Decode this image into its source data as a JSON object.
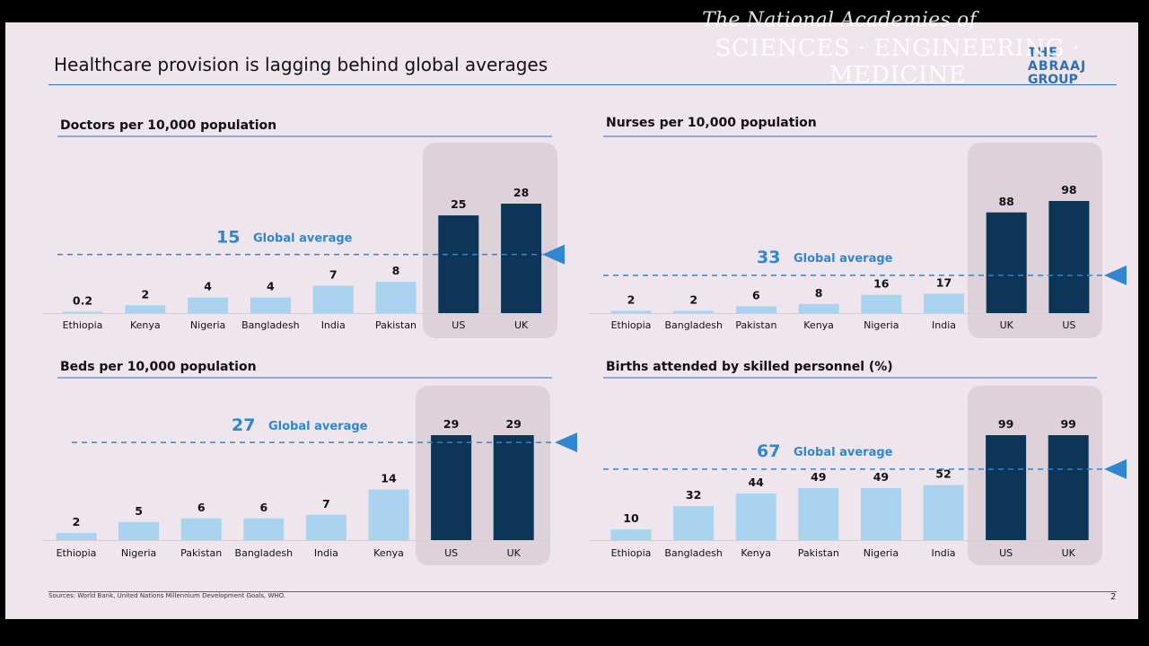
{
  "page": {
    "title": "Healthcare provision is lagging behind global averages",
    "source": "Sources: World Bank, United Nations Millennium Development Goals, WHO.",
    "page_number": "2",
    "watermark_line1": "The National Academies of",
    "watermark_line2": "SCIENCES · ENGINEERING · MEDICINE",
    "logo_line1": "THE",
    "logo_line2": "ABRAAJ",
    "logo_line3": "GROUP"
  },
  "colors": {
    "light_bar": "#a9d3ee",
    "dark_bar": "#0c3558",
    "highlight_box": "#ddd1da",
    "average": "#2f86d1",
    "rule": "#2f6fb3"
  },
  "chart_data": [
    {
      "type": "bar",
      "title": "Doctors per 10,000 population",
      "categories": [
        "Ethiopia",
        "Kenya",
        "Nigeria",
        "Bangladesh",
        "India",
        "Pakistan",
        "US",
        "UK"
      ],
      "values": [
        0.2,
        2,
        4,
        4,
        7,
        8,
        25,
        28
      ],
      "value_labels": [
        "0.2",
        "2",
        "4",
        "4",
        "7",
        "8",
        "25",
        "28"
      ],
      "highlight_categories": [
        "US",
        "UK"
      ],
      "global_average": 15,
      "global_average_value_label": "15",
      "global_average_label": "Global average"
    },
    {
      "type": "bar",
      "title": "Nurses per 10,000 population",
      "categories": [
        "Ethiopia",
        "Bangladesh",
        "Pakistan",
        "Kenya",
        "Nigeria",
        "India",
        "UK",
        "US"
      ],
      "values": [
        2,
        2,
        6,
        8,
        16,
        17,
        88,
        98
      ],
      "value_labels": [
        "2",
        "2",
        "6",
        "8",
        "16",
        "17",
        "88",
        "98"
      ],
      "highlight_categories": [
        "UK",
        "US"
      ],
      "global_average": 33,
      "global_average_value_label": "33",
      "global_average_label": "Global average"
    },
    {
      "type": "bar",
      "title": "Beds per 10,000 population",
      "categories": [
        "Ethiopia",
        "Nigeria",
        "Pakistan",
        "Bangladesh",
        "India",
        "Kenya",
        "US",
        "UK"
      ],
      "values": [
        2,
        5,
        6,
        6,
        7,
        14,
        29,
        29
      ],
      "value_labels": [
        "2",
        "5",
        "6",
        "6",
        "7",
        "14",
        "29",
        "29"
      ],
      "highlight_categories": [
        "US",
        "UK"
      ],
      "global_average": 27,
      "global_average_value_label": "27",
      "global_average_label": "Global average"
    },
    {
      "type": "bar",
      "title": "Births attended by skilled personnel (%)",
      "categories": [
        "Ethiopia",
        "Bangladesh",
        "Kenya",
        "Pakistan",
        "Nigeria",
        "India",
        "US",
        "UK"
      ],
      "values": [
        10,
        32,
        44,
        49,
        49,
        52,
        99,
        99
      ],
      "value_labels": [
        "10",
        "32",
        "44",
        "49",
        "49",
        "52",
        "99",
        "99"
      ],
      "highlight_categories": [
        "US",
        "UK"
      ],
      "global_average": 67,
      "global_average_value_label": "67",
      "global_average_label": "Global average"
    }
  ]
}
